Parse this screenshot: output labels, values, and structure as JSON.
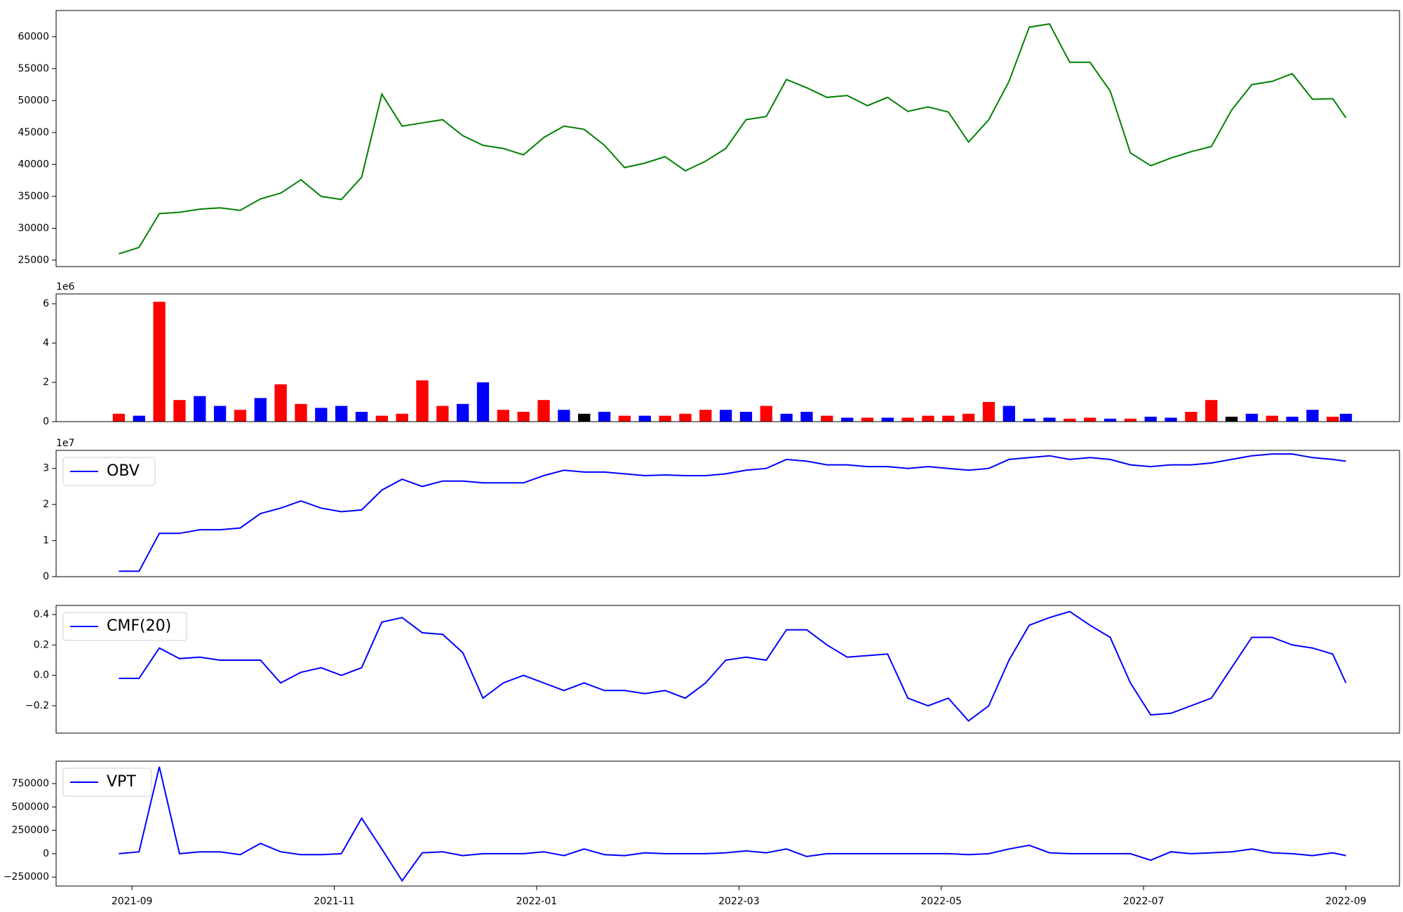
{
  "chart_data": [
    {
      "type": "line",
      "x": [
        -0.13,
        0.07,
        0.27,
        0.47,
        0.67,
        0.87,
        1.07,
        1.27,
        1.47,
        1.67,
        1.87,
        2.07,
        2.27,
        2.47,
        2.67,
        2.87,
        3.07,
        3.27,
        3.47,
        3.67,
        3.87,
        4.07,
        4.27,
        4.47,
        4.67,
        4.87,
        5.07,
        5.27,
        5.47,
        5.67,
        5.87,
        6.07,
        6.27,
        6.47,
        6.67,
        6.87,
        7.07,
        7.27,
        7.47,
        7.67,
        7.87,
        8.07,
        8.27,
        8.47,
        8.67,
        8.87,
        9.07,
        9.27,
        9.47,
        9.67,
        9.87,
        10.07,
        10.27,
        10.47,
        10.67,
        10.87,
        11.07,
        11.27,
        11.47,
        11.67,
        11.87,
        12.0
      ],
      "values": [
        26000,
        27000,
        32300,
        32500,
        33000,
        33200,
        32800,
        34600,
        35500,
        37600,
        35000,
        34500,
        38000,
        51000,
        46000,
        46500,
        47000,
        44500,
        43000,
        42500,
        41500,
        44200,
        46000,
        45500,
        43000,
        39500,
        40200,
        41200,
        39000,
        40500,
        42500,
        47000,
        47500,
        53300,
        52000,
        50500,
        50800,
        49200,
        50500,
        48300,
        49000,
        48200,
        43500,
        47000,
        53000,
        61500,
        62000,
        56000,
        56000,
        51500,
        41800,
        39800,
        41000,
        42000,
        42800,
        48500,
        52500,
        53000,
        54200,
        50200,
        50300,
        47300
      ],
      "color": "#008000",
      "xlim": [
        -0.75,
        12.53
      ],
      "ylim": [
        24000,
        64100
      ],
      "yticks": [
        25000,
        30000,
        35000,
        40000,
        45000,
        50000,
        55000,
        60000
      ]
    },
    {
      "type": "bar",
      "x": [
        -0.13,
        0.07,
        0.27,
        0.47,
        0.67,
        0.87,
        1.07,
        1.27,
        1.47,
        1.67,
        1.87,
        2.07,
        2.27,
        2.47,
        2.67,
        2.87,
        3.07,
        3.27,
        3.47,
        3.67,
        3.87,
        4.07,
        4.27,
        4.47,
        4.67,
        4.87,
        5.07,
        5.27,
        5.47,
        5.67,
        5.87,
        6.07,
        6.27,
        6.47,
        6.67,
        6.87,
        7.07,
        7.27,
        7.47,
        7.67,
        7.87,
        8.07,
        8.27,
        8.47,
        8.67,
        8.87,
        9.07,
        9.27,
        9.47,
        9.67,
        9.87,
        10.07,
        10.27,
        10.47,
        10.67,
        10.87,
        11.07,
        11.27,
        11.47,
        11.67,
        11.87,
        12.0
      ],
      "values": [
        400000,
        300000,
        6100000,
        1100000,
        1300000,
        800000,
        600000,
        1200000,
        1900000,
        900000,
        700000,
        800000,
        500000,
        300000,
        400000,
        2100000,
        800000,
        900000,
        2000000,
        600000,
        500000,
        1100000,
        600000,
        400000,
        500000,
        300000,
        300000,
        300000,
        400000,
        600000,
        600000,
        500000,
        800000,
        400000,
        500000,
        300000,
        200000,
        200000,
        200000,
        200000,
        300000,
        300000,
        400000,
        1000000,
        800000,
        150000,
        200000,
        150000,
        200000,
        150000,
        150000,
        250000,
        200000,
        500000,
        1100000,
        250000,
        400000,
        300000,
        250000,
        600000,
        250000,
        400000
      ],
      "colors": [
        "red",
        "blue",
        "red",
        "red",
        "blue",
        "blue",
        "red",
        "blue",
        "red",
        "red",
        "blue",
        "blue",
        "blue",
        "red",
        "red",
        "red",
        "red",
        "blue",
        "blue",
        "red",
        "red",
        "red",
        "blue",
        "black",
        "blue",
        "red",
        "blue",
        "red",
        "red",
        "red",
        "blue",
        "blue",
        "red",
        "blue",
        "blue",
        "red",
        "blue",
        "red",
        "blue",
        "red",
        "red",
        "red",
        "red",
        "red",
        "blue",
        "blue",
        "blue",
        "red",
        "red",
        "blue",
        "red",
        "blue",
        "blue",
        "red",
        "red",
        "black",
        "blue",
        "red",
        "blue",
        "blue",
        "red",
        "blue"
      ],
      "offset_label": "1e6",
      "xlim": [
        -0.75,
        12.53
      ],
      "ylim": [
        0,
        6500000
      ],
      "yticks": [
        0,
        {
          "value": 2000000,
          "label": "2"
        },
        {
          "value": 4000000,
          "label": "4"
        },
        {
          "value": 6000000,
          "label": "6"
        }
      ]
    },
    {
      "type": "line",
      "x": [
        -0.13,
        0.07,
        0.27,
        0.47,
        0.67,
        0.87,
        1.07,
        1.27,
        1.47,
        1.67,
        1.87,
        2.07,
        2.27,
        2.47,
        2.67,
        2.87,
        3.07,
        3.27,
        3.47,
        3.67,
        3.87,
        4.07,
        4.27,
        4.47,
        4.67,
        4.87,
        5.07,
        5.27,
        5.47,
        5.67,
        5.87,
        6.07,
        6.27,
        6.47,
        6.67,
        6.87,
        7.07,
        7.27,
        7.47,
        7.67,
        7.87,
        8.07,
        8.27,
        8.47,
        8.67,
        8.87,
        9.07,
        9.27,
        9.47,
        9.67,
        9.87,
        10.07,
        10.27,
        10.47,
        10.67,
        10.87,
        11.07,
        11.27,
        11.47,
        11.67,
        11.87,
        12.0
      ],
      "series": [
        {
          "name": "OBV",
          "color": "blue",
          "values": [
            1500000,
            1500000,
            12000000,
            12000000,
            13000000,
            13000000,
            13500000,
            17500000,
            19000000,
            21000000,
            19000000,
            18000000,
            18500000,
            24000000,
            27000000,
            25000000,
            26500000,
            26500000,
            26000000,
            26000000,
            26000000,
            28000000,
            29500000,
            29000000,
            29000000,
            28500000,
            28000000,
            28200000,
            28000000,
            28000000,
            28500000,
            29500000,
            30000000,
            32500000,
            32000000,
            31000000,
            31000000,
            30500000,
            30500000,
            30000000,
            30500000,
            30000000,
            29500000,
            30000000,
            32500000,
            33000000,
            33500000,
            32500000,
            33000000,
            32500000,
            31000000,
            30500000,
            31000000,
            31000000,
            31500000,
            32500000,
            33500000,
            34000000,
            34000000,
            33000000,
            32500000,
            32000000
          ]
        }
      ],
      "offset_label": "1e7",
      "xlim": [
        -0.75,
        12.53
      ],
      "ylim": [
        0,
        35000000
      ],
      "yticks": [
        0,
        {
          "value": 10000000,
          "label": "1"
        },
        {
          "value": 20000000,
          "label": "2"
        },
        {
          "value": 30000000,
          "label": "3"
        }
      ]
    },
    {
      "type": "line",
      "x": [
        -0.13,
        0.07,
        0.27,
        0.47,
        0.67,
        0.87,
        1.07,
        1.27,
        1.47,
        1.67,
        1.87,
        2.07,
        2.27,
        2.47,
        2.67,
        2.87,
        3.07,
        3.27,
        3.47,
        3.67,
        3.87,
        4.07,
        4.27,
        4.47,
        4.67,
        4.87,
        5.07,
        5.27,
        5.47,
        5.67,
        5.87,
        6.07,
        6.27,
        6.47,
        6.67,
        6.87,
        7.07,
        7.27,
        7.47,
        7.67,
        7.87,
        8.07,
        8.27,
        8.47,
        8.67,
        8.87,
        9.07,
        9.27,
        9.47,
        9.67,
        9.87,
        10.07,
        10.27,
        10.47,
        10.67,
        10.87,
        11.07,
        11.27,
        11.47,
        11.67,
        11.87,
        12.0
      ],
      "series": [
        {
          "name": "CMF(20)",
          "color": "blue",
          "values": [
            -0.02,
            -0.02,
            0.18,
            0.11,
            0.12,
            0.1,
            0.1,
            0.1,
            -0.05,
            0.02,
            0.05,
            0.0,
            0.05,
            0.35,
            0.38,
            0.28,
            0.27,
            0.15,
            -0.15,
            -0.05,
            0.0,
            -0.05,
            -0.1,
            -0.05,
            -0.1,
            -0.1,
            -0.12,
            -0.1,
            -0.15,
            -0.05,
            0.1,
            0.12,
            0.1,
            0.3,
            0.3,
            0.2,
            0.12,
            0.13,
            0.14,
            -0.15,
            -0.2,
            -0.15,
            -0.3,
            -0.2,
            0.1,
            0.33,
            0.38,
            0.42,
            0.33,
            0.25,
            -0.05,
            -0.26,
            -0.25,
            -0.2,
            -0.15,
            0.05,
            0.25,
            0.25,
            0.2,
            0.18,
            0.14,
            -0.05
          ]
        }
      ],
      "xlim": [
        -0.75,
        12.53
      ],
      "ylim": [
        -0.38,
        0.46
      ],
      "yticks": [
        {
          "value": -0.2,
          "label": "−0.2"
        },
        {
          "value": 0,
          "label": "0.0"
        },
        0.2,
        0.4
      ]
    },
    {
      "type": "line",
      "x": [
        -0.13,
        0.07,
        0.27,
        0.47,
        0.67,
        0.87,
        1.07,
        1.27,
        1.47,
        1.67,
        1.87,
        2.07,
        2.27,
        2.47,
        2.67,
        2.87,
        3.07,
        3.27,
        3.47,
        3.67,
        3.87,
        4.07,
        4.27,
        4.47,
        4.67,
        4.87,
        5.07,
        5.27,
        5.47,
        5.67,
        5.87,
        6.07,
        6.27,
        6.47,
        6.67,
        6.87,
        7.07,
        7.27,
        7.47,
        7.67,
        7.87,
        8.07,
        8.27,
        8.47,
        8.67,
        8.87,
        9.07,
        9.27,
        9.47,
        9.67,
        9.87,
        10.07,
        10.27,
        10.47,
        10.67,
        10.87,
        11.07,
        11.27,
        11.47,
        11.67,
        11.87,
        12.0
      ],
      "series": [
        {
          "name": "VPT",
          "color": "blue",
          "values": [
            0,
            20000,
            930000,
            0,
            20000,
            20000,
            -10000,
            110000,
            20000,
            -10000,
            -10000,
            0,
            380000,
            50000,
            -290000,
            10000,
            20000,
            -20000,
            0,
            0,
            0,
            20000,
            -20000,
            50000,
            -10000,
            -20000,
            10000,
            0,
            0,
            0,
            10000,
            30000,
            10000,
            50000,
            -30000,
            0,
            0,
            0,
            0,
            0,
            0,
            0,
            -10000,
            0,
            50000,
            90000,
            10000,
            0,
            0,
            0,
            0,
            -70000,
            20000,
            0,
            10000,
            20000,
            50000,
            10000,
            0,
            -20000,
            10000,
            -20000
          ]
        }
      ],
      "xlim": [
        -0.75,
        12.53
      ],
      "ylim": [
        -346000,
        990000
      ],
      "yticks": [
        {
          "value": -250000,
          "label": "−250000"
        },
        0,
        250000,
        500000,
        750000
      ],
      "xticks": [
        {
          "value": 0,
          "label": "2021-09"
        },
        {
          "value": 2,
          "label": "2021-11"
        },
        {
          "value": 4,
          "label": "2022-01"
        },
        {
          "value": 6,
          "label": "2022-03"
        },
        {
          "value": 8,
          "label": "2022-05"
        },
        {
          "value": 10,
          "label": "2022-07"
        },
        {
          "value": 12,
          "label": "2022-09"
        }
      ]
    }
  ]
}
